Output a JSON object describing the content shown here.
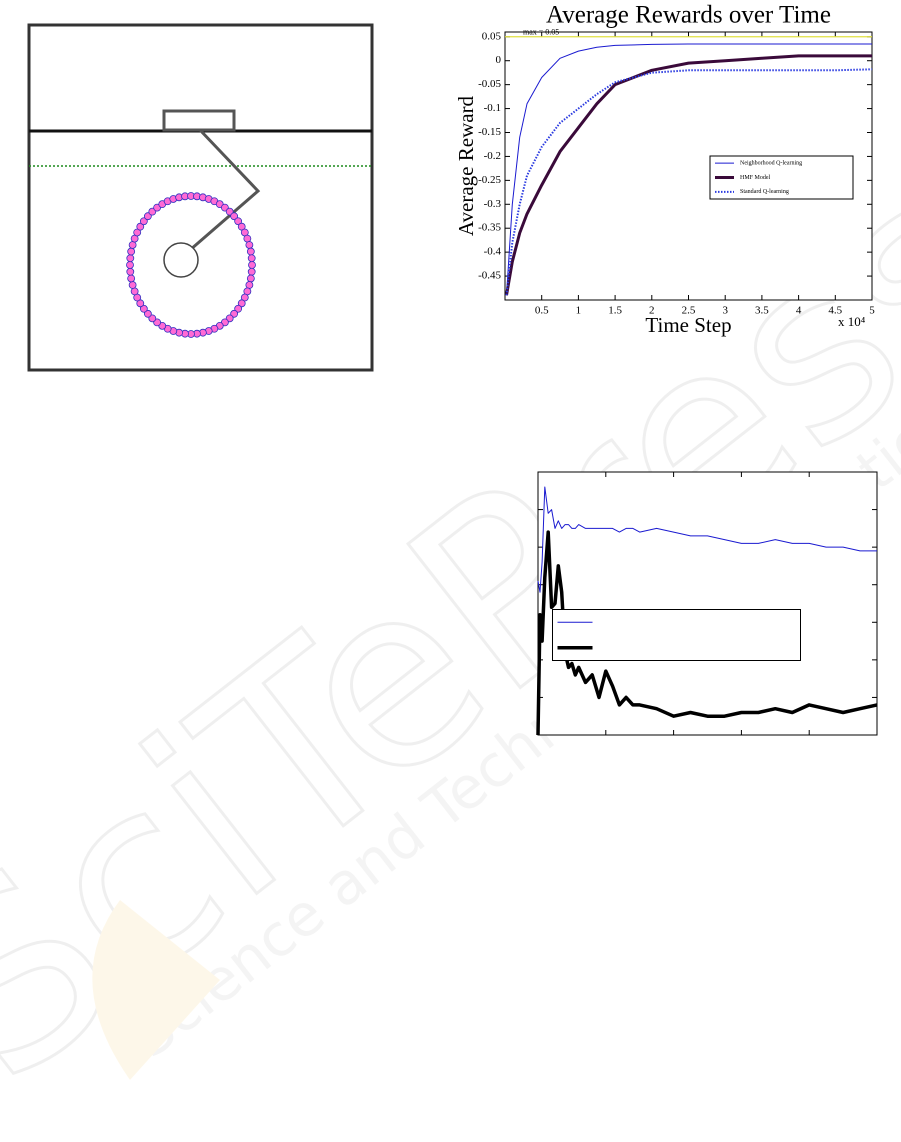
{
  "chart_data": [
    {
      "type": "line",
      "title": "Average Rewards over Time",
      "xlabel": "Time Step",
      "ylabel": "Average Reward",
      "x_scale_label": "x 10⁴",
      "xlim": [
        0,
        5
      ],
      "xticks": [
        0.5,
        1,
        1.5,
        2,
        2.5,
        3,
        3.5,
        4,
        4.5,
        5
      ],
      "ylim": [
        -0.5,
        0.06
      ],
      "yticks": [
        0.05,
        0,
        -0.05,
        -0.1,
        -0.15,
        -0.2,
        -0.25,
        -0.3,
        -0.35,
        -0.4,
        -0.45
      ],
      "tick_labels": true,
      "legend": "right",
      "hline": {
        "value": 0.05,
        "color": "#e0e040",
        "label": "max = 0.05"
      },
      "x": [
        0.02,
        0.1,
        0.2,
        0.3,
        0.5,
        0.75,
        1,
        1.25,
        1.5,
        2,
        2.5,
        3,
        3.5,
        4,
        4.5,
        5
      ],
      "series": [
        {
          "name": "Neighborhood Q-learning",
          "color": "#1a1ad0",
          "linewidth": 1,
          "linestyle": "solid",
          "values": [
            -0.49,
            -0.3,
            -0.16,
            -0.09,
            -0.035,
            0.005,
            0.02,
            0.028,
            0.032,
            0.034,
            0.035,
            0.035,
            0.035,
            0.035,
            0.035,
            0.035
          ]
        },
        {
          "name": "HMF Model",
          "color": "#3a0a3a",
          "linewidth": 3,
          "linestyle": "solid",
          "values": [
            -0.49,
            -0.42,
            -0.36,
            -0.32,
            -0.26,
            -0.19,
            -0.14,
            -0.09,
            -0.05,
            -0.02,
            -0.005,
            0,
            0.005,
            0.01,
            0.01,
            0.01
          ]
        },
        {
          "name": "Standard Q-learning",
          "color": "#2a3ae0",
          "linewidth": 2,
          "linestyle": "dotted",
          "values": [
            -0.49,
            -0.38,
            -0.3,
            -0.24,
            -0.18,
            -0.13,
            -0.1,
            -0.07,
            -0.045,
            -0.025,
            -0.02,
            -0.02,
            -0.02,
            -0.02,
            -0.02,
            -0.018
          ]
        }
      ]
    },
    {
      "type": "line",
      "xlim": [
        0,
        5
      ],
      "xticks": [
        1,
        2,
        3,
        4
      ],
      "ylim": [
        0,
        7
      ],
      "yticks": [
        1,
        2,
        3,
        4,
        5,
        6
      ],
      "tick_labels": false,
      "legend": "center",
      "x": [
        0,
        0.03,
        0.06,
        0.1,
        0.15,
        0.2,
        0.25,
        0.3,
        0.35,
        0.4,
        0.45,
        0.5,
        0.55,
        0.6,
        0.7,
        0.8,
        0.9,
        1,
        1.1,
        1.2,
        1.3,
        1.4,
        1.5,
        1.75,
        2,
        2.25,
        2.5,
        2.75,
        3,
        3.25,
        3.5,
        3.75,
        4,
        4.25,
        4.5,
        4.75,
        5
      ],
      "series": [
        {
          "color": "#1a1ad0",
          "linewidth": 1,
          "linestyle": "solid",
          "values": [
            4.1,
            3.8,
            4.6,
            6.6,
            5.9,
            6.0,
            5.5,
            5.7,
            5.5,
            5.6,
            5.6,
            5.5,
            5.5,
            5.6,
            5.5,
            5.5,
            5.5,
            5.5,
            5.5,
            5.4,
            5.5,
            5.5,
            5.4,
            5.5,
            5.4,
            5.3,
            5.3,
            5.2,
            5.1,
            5.1,
            5.2,
            5.1,
            5.1,
            5.0,
            5.0,
            4.9,
            4.9
          ]
        },
        {
          "color": "#000000",
          "linewidth": 3.5,
          "linestyle": "solid",
          "values": [
            0,
            3.2,
            2.5,
            4.2,
            5.4,
            3.4,
            3.5,
            4.5,
            3.8,
            2.2,
            1.8,
            1.9,
            1.6,
            1.8,
            1.4,
            1.6,
            1.0,
            1.7,
            1.3,
            0.8,
            1.0,
            0.8,
            0.8,
            0.7,
            0.5,
            0.6,
            0.5,
            0.5,
            0.6,
            0.6,
            0.7,
            0.6,
            0.8,
            0.7,
            0.6,
            0.7,
            0.8
          ]
        }
      ]
    }
  ],
  "watermark": {
    "logo": "SciTePress",
    "tagline": "Science and Technology Publications"
  }
}
